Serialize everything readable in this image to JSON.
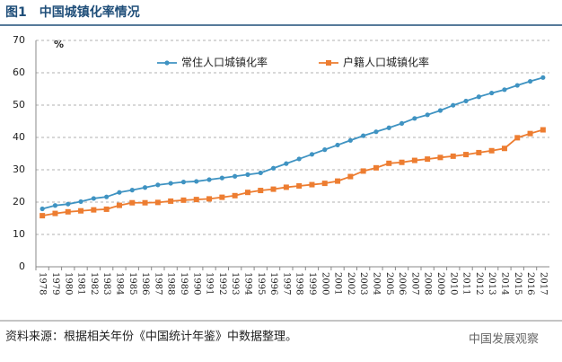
{
  "chart_data": {
    "type": "line",
    "title": "图1　中国城镇化率情况",
    "ylabel": "%",
    "source": "资料来源：根据相关年份《中国统计年鉴》中数据整理。",
    "watermark": "中国发展观察",
    "categories": [
      "1978",
      "1979",
      "1980",
      "1981",
      "1982",
      "1983",
      "1984",
      "1985",
      "1986",
      "1987",
      "1988",
      "1989",
      "1990",
      "1991",
      "1992",
      "1993",
      "1994",
      "1995",
      "1996",
      "1997",
      "1998",
      "1999",
      "2000",
      "2001",
      "2002",
      "2003",
      "2004",
      "2005",
      "2006",
      "2007",
      "2008",
      "2009",
      "2010",
      "2011",
      "2012",
      "2013",
      "2014",
      "2015",
      "2016",
      "2017"
    ],
    "series": [
      {
        "name": "常住人口城镇化率",
        "color": "#3f93c2",
        "marker": "circle",
        "values": [
          17.92,
          18.96,
          19.39,
          20.16,
          21.13,
          21.62,
          23.01,
          23.71,
          24.52,
          25.32,
          25.81,
          26.21,
          26.41,
          26.94,
          27.46,
          27.99,
          28.51,
          29.04,
          30.48,
          31.91,
          33.35,
          34.78,
          36.22,
          37.66,
          39.09,
          40.53,
          41.76,
          42.99,
          44.34,
          45.89,
          46.99,
          48.34,
          49.95,
          51.27,
          52.57,
          53.73,
          54.77,
          56.1,
          57.35,
          58.52
        ]
      },
      {
        "name": "户籍人口城镇化率",
        "color": "#ed7d31",
        "marker": "square",
        "values": [
          15.8,
          16.5,
          17.0,
          17.3,
          17.6,
          17.8,
          19.0,
          19.8,
          19.8,
          19.9,
          20.3,
          20.6,
          20.8,
          21.0,
          21.5,
          22.0,
          23.0,
          23.6,
          24.0,
          24.6,
          25.0,
          25.4,
          25.8,
          26.5,
          27.9,
          29.6,
          30.6,
          32.0,
          32.3,
          32.9,
          33.3,
          33.8,
          34.2,
          34.7,
          35.3,
          35.9,
          36.6,
          39.9,
          41.2,
          42.35
        ]
      }
    ],
    "ylim": [
      0,
      70
    ],
    "yticks": [
      0,
      10,
      20,
      30,
      40,
      50,
      60,
      70
    ],
    "grid": true,
    "legend": "top"
  }
}
